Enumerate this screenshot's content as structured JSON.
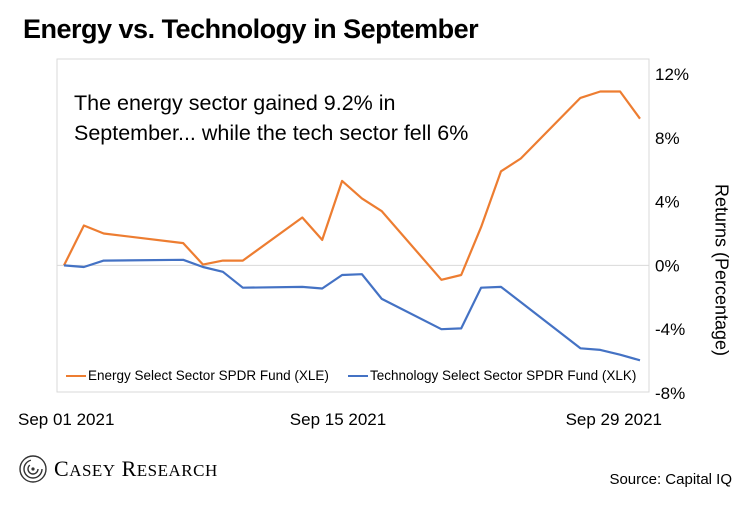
{
  "title": "Energy vs. Technology in September",
  "annotation": {
    "line1": "The energy sector gained 9.2% in",
    "line2": "September... while the tech sector fell 6%"
  },
  "source": "Source: Capital IQ",
  "logo_text": "Casey Research",
  "colors": {
    "energy": "#ED7D31",
    "tech": "#4472C4",
    "grid": "#d9d9d9"
  },
  "chart_data": {
    "type": "line",
    "ylabel": "Returns (Percentage)",
    "ylim": [
      -8,
      12
    ],
    "y_ticks": [
      12,
      8,
      4,
      0,
      -4,
      -8
    ],
    "y_tick_labels": [
      "12%",
      "8%",
      "4%",
      "0%",
      "-4%",
      "-8%"
    ],
    "x_tick_labels": [
      "Sep 01 2021",
      "Sep 15 2021",
      "Sep 29 2021"
    ],
    "x": [
      "2021-09-01",
      "2021-09-02",
      "2021-09-03",
      "2021-09-07",
      "2021-09-08",
      "2021-09-09",
      "2021-09-10",
      "2021-09-13",
      "2021-09-14",
      "2021-09-15",
      "2021-09-16",
      "2021-09-17",
      "2021-09-20",
      "2021-09-21",
      "2021-09-22",
      "2021-09-23",
      "2021-09-24",
      "2021-09-27",
      "2021-09-28",
      "2021-09-29",
      "2021-09-30"
    ],
    "series": [
      {
        "name": "Energy Select Sector SPDR Fund (XLE)",
        "values": [
          0.0,
          2.5,
          2.0,
          1.4,
          0.05,
          0.3,
          0.3,
          3.0,
          1.6,
          5.3,
          4.2,
          3.4,
          -0.9,
          -0.6,
          2.4,
          5.9,
          6.7,
          10.5,
          10.9,
          10.9,
          9.2
        ]
      },
      {
        "name": "Technology Select Sector SPDR Fund (XLK)",
        "values": [
          0.0,
          -0.1,
          0.3,
          0.35,
          -0.1,
          -0.4,
          -1.4,
          -1.35,
          -1.45,
          -0.6,
          -0.55,
          -2.1,
          -4.0,
          -3.95,
          -1.4,
          -1.35,
          -2.3,
          -5.2,
          -5.3,
          -5.6,
          -5.95
        ]
      }
    ],
    "legend_position": "bottom-left"
  }
}
